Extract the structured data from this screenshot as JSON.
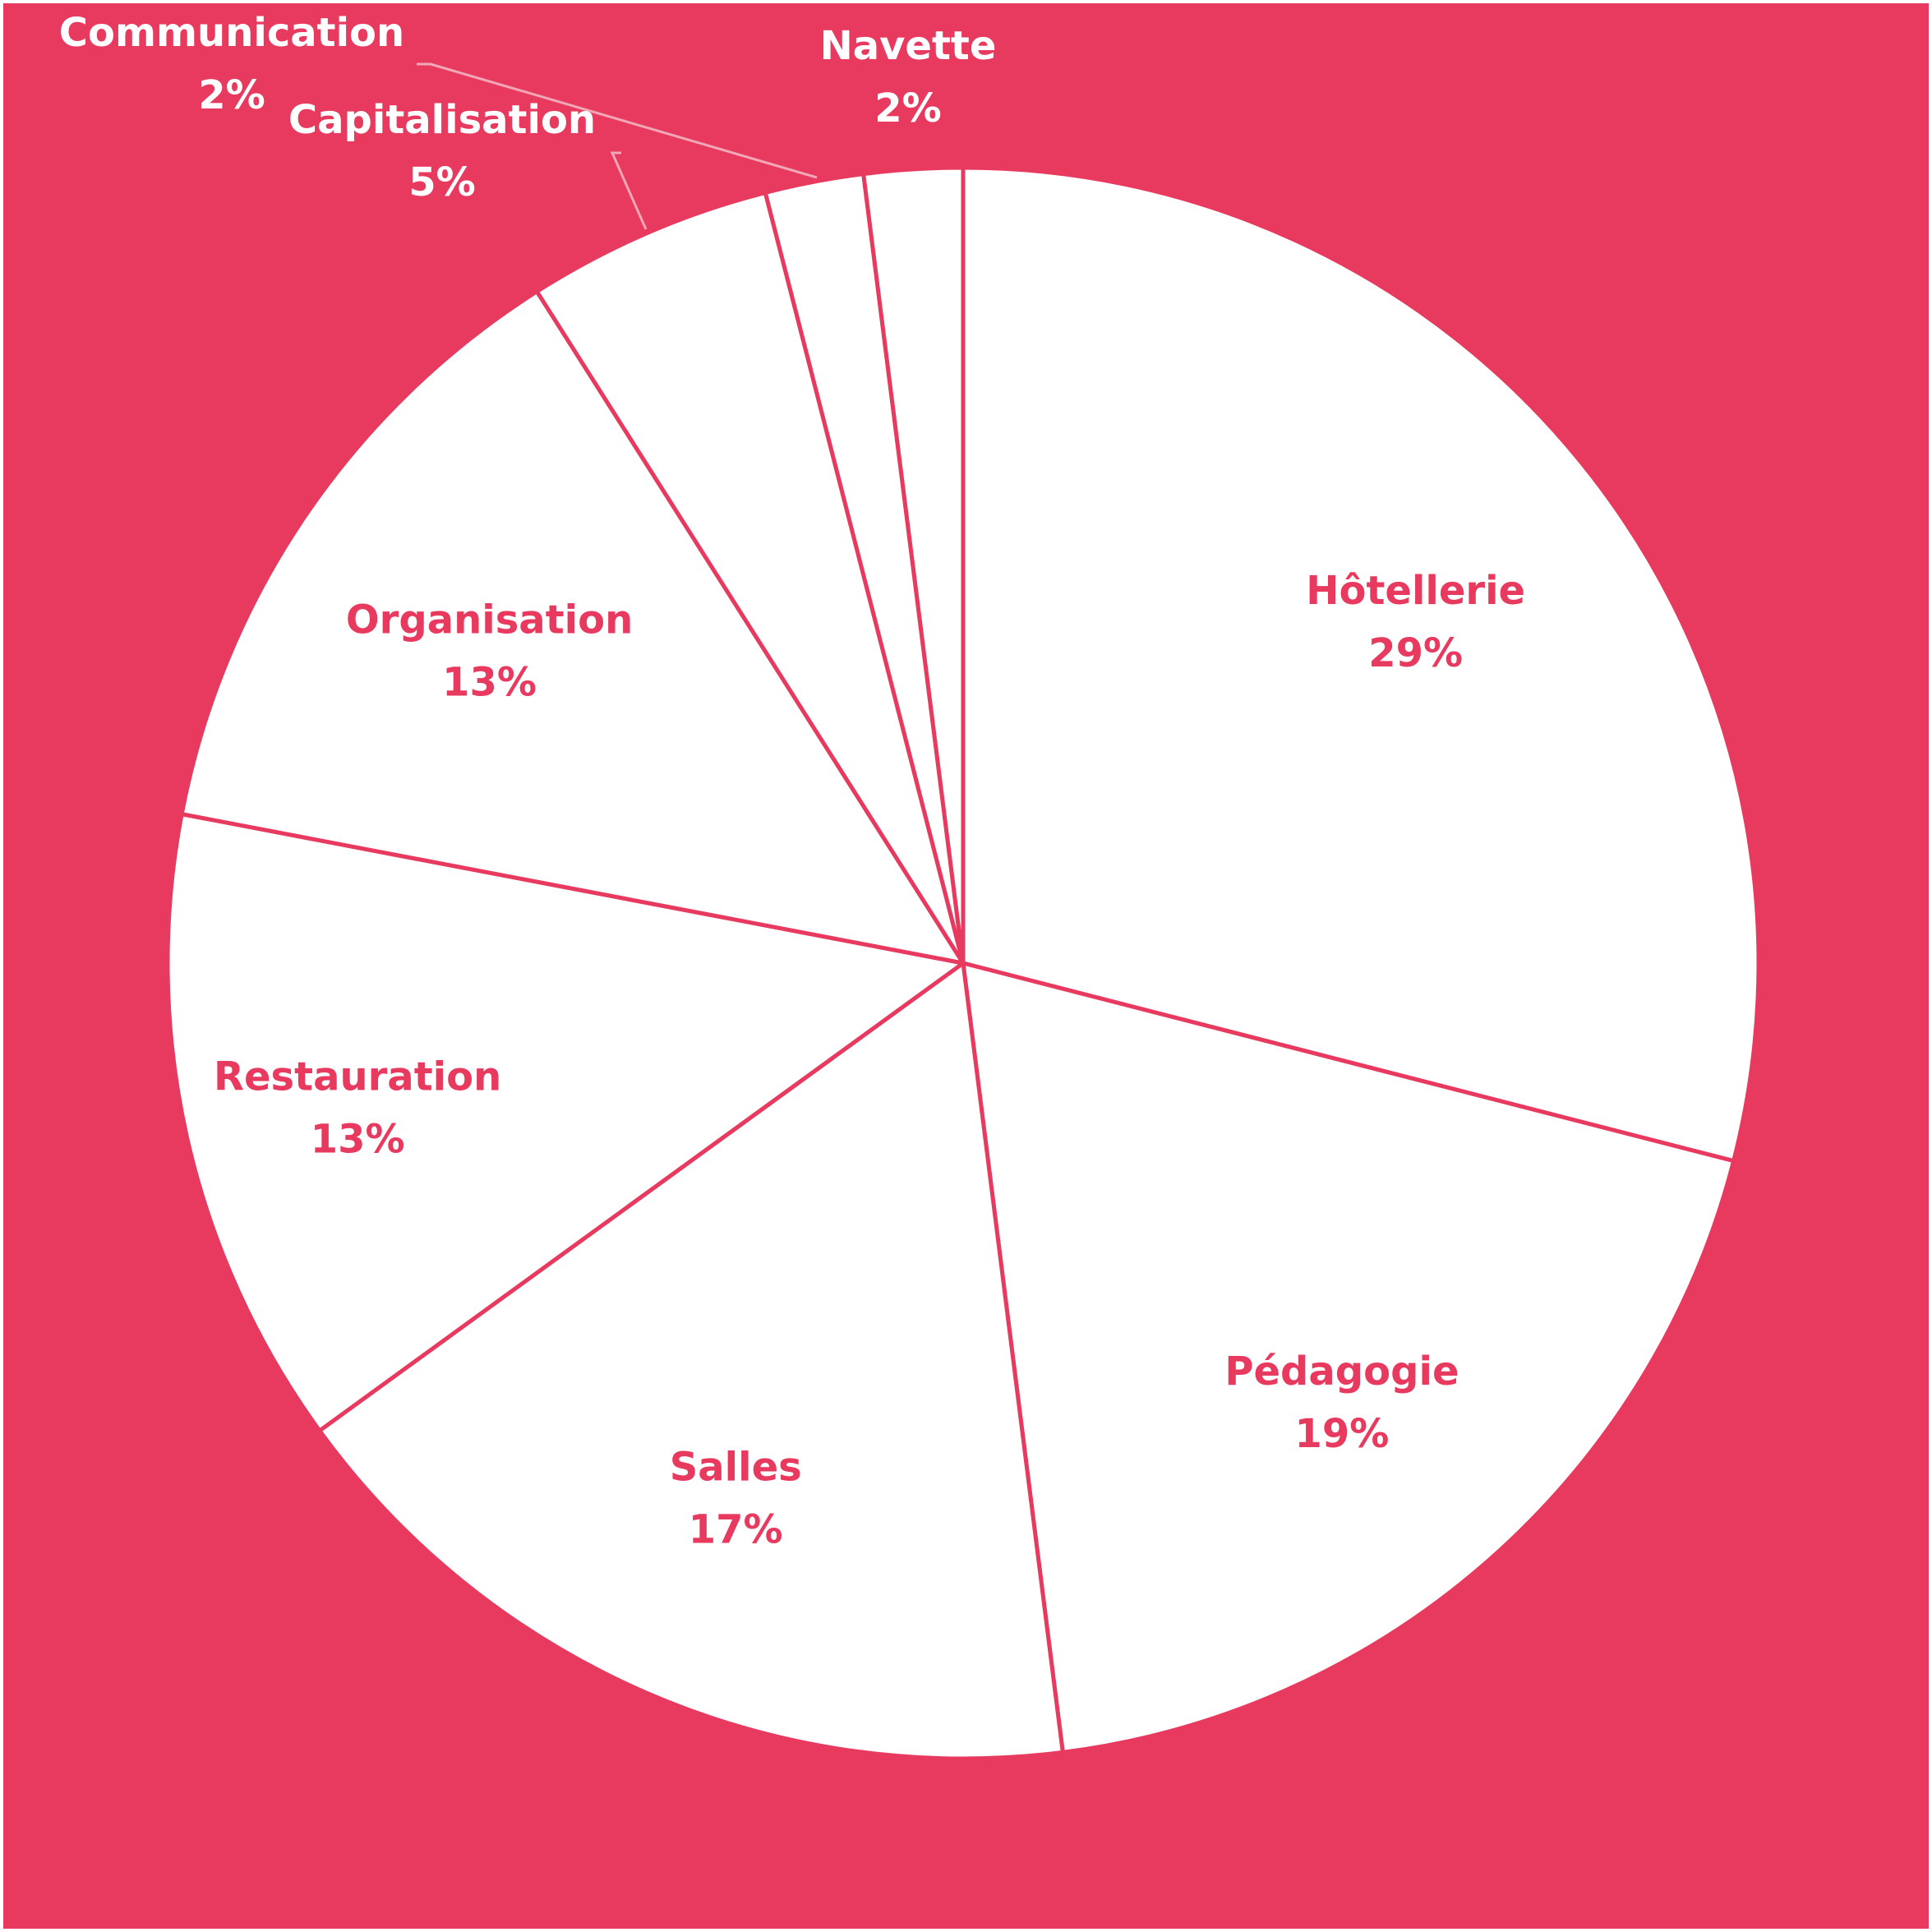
{
  "chart_data": {
    "type": "pie",
    "title": "",
    "slices": [
      {
        "label": "Hôtellerie",
        "value": 29,
        "value_label": "29%"
      },
      {
        "label": "Pédagogie",
        "value": 19,
        "value_label": "19%"
      },
      {
        "label": "Salles",
        "value": 17,
        "value_label": "17%"
      },
      {
        "label": "Restauration",
        "value": 13,
        "value_label": "13%"
      },
      {
        "label": "Organisation",
        "value": 13,
        "value_label": "13%"
      },
      {
        "label": "Capitalisation",
        "value": 5,
        "value_label": "5%"
      },
      {
        "label": "Communication",
        "value": 2,
        "value_label": "2%"
      },
      {
        "label": "Navette",
        "value": 2,
        "value_label": "2%"
      }
    ],
    "legend": "none"
  },
  "colors": {
    "background": "#e83a5f",
    "slice_fill": "#ffffff",
    "inside_label": "#e83a5f",
    "outside_label": "#ffffff",
    "leader_line": "#f2a7b7"
  }
}
